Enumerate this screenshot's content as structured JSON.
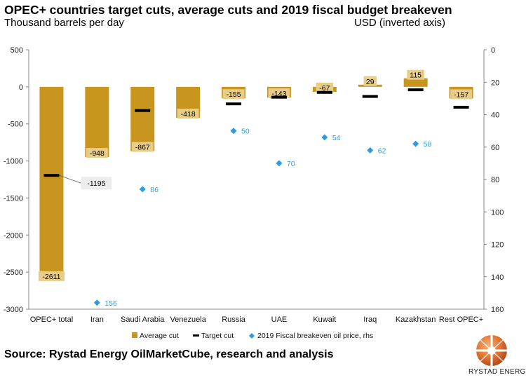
{
  "chart_data": {
    "type": "bar",
    "title": "OPEC+ countries target cuts, average cuts and 2019 fiscal budget breakeven",
    "ylabel": "Thousand barrels per day",
    "y2label": "USD (inverted axis)",
    "categories": [
      "OPEC+ total",
      "Iran",
      "Saudi Arabia",
      "Venezuela",
      "Russia",
      "UAE",
      "Kuwait",
      "Iraq",
      "Kazakhstan",
      "Rest OPEC+"
    ],
    "ylim": [
      -3000,
      500
    ],
    "yticks": [
      500,
      0,
      -500,
      -1000,
      -1500,
      -2000,
      -2500,
      -3000
    ],
    "y2lim": [
      0,
      160
    ],
    "y2ticks": [
      0,
      20,
      40,
      60,
      80,
      100,
      120,
      140,
      160
    ],
    "y2_inverted": true,
    "legend_position": "bottom",
    "series": [
      {
        "name": "Average cut",
        "kind": "bar",
        "color": "#C8961E",
        "label_color": "#E8CC8A",
        "values": [
          -2611,
          -948,
          -867,
          -418,
          -155,
          -143,
          -67,
          29,
          115,
          -157
        ]
      },
      {
        "name": "Target cut",
        "kind": "marker",
        "color": "#000000",
        "values": [
          -1195,
          null,
          -320,
          null,
          -230,
          -140,
          -75,
          -130,
          -40,
          -275
        ],
        "value_labels": [
          "-1195",
          null,
          null,
          null,
          null,
          null,
          null,
          null,
          null,
          null
        ]
      },
      {
        "name": "2019 Fiscal breakeven oil price, rhs",
        "kind": "scatter",
        "axis": "right",
        "color": "#2E9BE0",
        "values": [
          null,
          156,
          86,
          null,
          50,
          70,
          54,
          62,
          58,
          null
        ]
      }
    ]
  },
  "source": "Source: Rystad Energy OilMarketCube, research and analysis",
  "logo_text": "RYSTAD ENERGY"
}
